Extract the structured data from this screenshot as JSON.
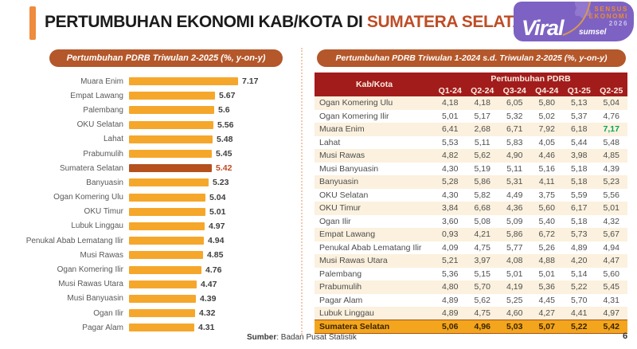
{
  "header": {
    "title_prefix": "PERTUMBUHAN EKONOMI KAB/KOTA DI ",
    "title_highlight": "SUMATERA SELATAN",
    "accent_color": "#EE8B3D",
    "highlight_color": "#BE4D26"
  },
  "logo": {
    "brand": "Viral",
    "brand_sub": "sumsel",
    "badge_line1": "SENSUS",
    "badge_line2": "EKONOMI",
    "badge_year": "2026",
    "bg_color": "#7D62C3",
    "badge_color": "#F08A2B"
  },
  "chart_data": [
    {
      "type": "bar",
      "orientation": "horizontal",
      "title": "Pertumbuhan PDRB Triwulan 2-2025 (%, y-on-y)",
      "categories": [
        "Muara Enim",
        "Empat Lawang",
        "Palembang",
        "OKU Selatan",
        "Lahat",
        "Prabumulih",
        "Sumatera Selatan",
        "Banyuasin",
        "Ogan Komering Ulu",
        "OKU Timur",
        "Lubuk Linggau",
        "Penukal Abab Lematang Ilir",
        "Musi Rawas",
        "Ogan Komering Ilir",
        "Musi Rawas Utara",
        "Musi Banyuasin",
        "Ogan Ilir",
        "Pagar Alam"
      ],
      "values": [
        7.17,
        5.67,
        5.6,
        5.56,
        5.48,
        5.45,
        5.42,
        5.23,
        5.04,
        5.01,
        4.97,
        4.94,
        4.85,
        4.76,
        4.47,
        4.39,
        4.32,
        4.31
      ],
      "value_labels": [
        "7.17",
        "5.67",
        "5.6",
        "5.56",
        "5.48",
        "5.45",
        "5.42",
        "5.23",
        "5.04",
        "5.01",
        "4.97",
        "4.94",
        "4.85",
        "4.76",
        "4.47",
        "4.39",
        "4.32",
        "4.31"
      ],
      "highlight_index": 6,
      "xlim": [
        0,
        7.6
      ],
      "bar_color": "#F5A72B",
      "highlight_color": "#B4511E",
      "grid": false,
      "legend": "none"
    },
    {
      "type": "table",
      "title": "Pertumbuhan PDRB Triwulan 1-2024 s.d. Triwulan 2-2025 (%, y-on-y)",
      "col_header_main": "Kab/Kota",
      "col_group": "Pertumbuhan PDRB",
      "columns": [
        "Q1-24",
        "Q2-24",
        "Q3-24",
        "Q4-24",
        "Q1-25",
        "Q2-25"
      ],
      "rows": [
        {
          "name": "Ogan Komering Ulu",
          "values": [
            "4,18",
            "4,18",
            "6,05",
            "5,80",
            "5,13",
            "5,04"
          ]
        },
        {
          "name": "Ogan Komering Ilir",
          "values": [
            "5,01",
            "5,17",
            "5,32",
            "5,02",
            "5,37",
            "4,76"
          ]
        },
        {
          "name": "Muara Enim",
          "values": [
            "6,41",
            "2,68",
            "6,71",
            "7,92",
            "6,18",
            "7,17"
          ],
          "green_col": 5
        },
        {
          "name": "Lahat",
          "values": [
            "5,53",
            "5,11",
            "5,83",
            "4,05",
            "5,44",
            "5,48"
          ]
        },
        {
          "name": "Musi Rawas",
          "values": [
            "4,82",
            "5,62",
            "4,90",
            "4,46",
            "3,98",
            "4,85"
          ]
        },
        {
          "name": "Musi Banyuasin",
          "values": [
            "4,30",
            "5,19",
            "5,11",
            "5,16",
            "5,18",
            "4,39"
          ]
        },
        {
          "name": "Banyuasin",
          "values": [
            "5,28",
            "5,86",
            "5,31",
            "4,11",
            "5,18",
            "5,23"
          ]
        },
        {
          "name": "OKU Selatan",
          "values": [
            "4,30",
            "5,82",
            "4,49",
            "3,75",
            "5,59",
            "5,56"
          ]
        },
        {
          "name": "OKU Timur",
          "values": [
            "3,84",
            "6,68",
            "4,36",
            "5,60",
            "6,17",
            "5,01"
          ]
        },
        {
          "name": "Ogan Ilir",
          "values": [
            "3,60",
            "5,08",
            "5,09",
            "5,40",
            "5,18",
            "4,32"
          ]
        },
        {
          "name": "Empat Lawang",
          "values": [
            "0,93",
            "4,21",
            "5,86",
            "6,72",
            "5,73",
            "5,67"
          ]
        },
        {
          "name": "Penukal Abab Lematang Ilir",
          "values": [
            "4,09",
            "4,75",
            "5,77",
            "5,26",
            "4,89",
            "4,94"
          ]
        },
        {
          "name": "Musi Rawas Utara",
          "values": [
            "5,21",
            "3,97",
            "4,08",
            "4,88",
            "4,20",
            "4,47"
          ]
        },
        {
          "name": "Palembang",
          "values": [
            "5,36",
            "5,15",
            "5,01",
            "5,01",
            "5,14",
            "5,60"
          ]
        },
        {
          "name": "Prabumulih",
          "values": [
            "4,80",
            "5,70",
            "4,19",
            "5,36",
            "5,22",
            "5,45"
          ]
        },
        {
          "name": "Pagar Alam",
          "values": [
            "4,89",
            "5,62",
            "5,25",
            "4,45",
            "5,70",
            "4,31"
          ]
        },
        {
          "name": "Lubuk Linggau",
          "values": [
            "4,89",
            "4,75",
            "4,60",
            "4,27",
            "4,41",
            "4,97"
          ]
        }
      ],
      "total_row": {
        "name": "Sumatera Selatan",
        "values": [
          "5,06",
          "4,96",
          "5,03",
          "5,07",
          "5,22",
          "5,42"
        ]
      },
      "header_bg": "#A21C1C",
      "stripe_color": "#FBF1DE",
      "total_bg": "#F3A51D",
      "green_value_color": "#00A651"
    }
  ],
  "footer": {
    "source_label": "Sumber",
    "source_rest": ": Badan Pusat Statistik",
    "page_number": "6"
  }
}
